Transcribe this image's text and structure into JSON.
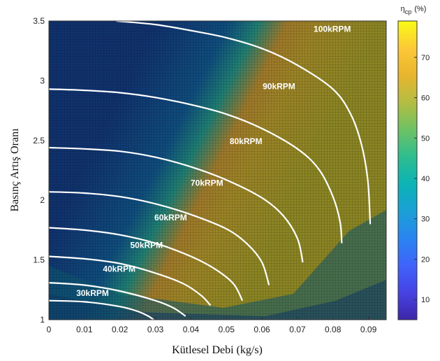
{
  "chart_data": {
    "type": "heatmap",
    "xlabel": "Kütlesel Debi (kg/s)",
    "ylabel": "Basınç Artış Oranı",
    "xlim": [
      0,
      0.095
    ],
    "ylim": [
      1,
      3.5
    ],
    "x_ticks": [
      {
        "value": 0,
        "label": "0"
      },
      {
        "value": 0.01,
        "label": "0.01"
      },
      {
        "value": 0.02,
        "label": "0.02"
      },
      {
        "value": 0.03,
        "label": "0.03"
      },
      {
        "value": 0.04,
        "label": "0.04"
      },
      {
        "value": 0.05,
        "label": "0.05"
      },
      {
        "value": 0.06,
        "label": "0.06"
      },
      {
        "value": 0.07,
        "label": "0.07"
      },
      {
        "value": 0.08,
        "label": "0.08"
      },
      {
        "value": 0.09,
        "label": "0.09"
      }
    ],
    "y_ticks": [
      {
        "value": 1,
        "label": "1"
      },
      {
        "value": 1.5,
        "label": "1.5"
      },
      {
        "value": 2,
        "label": "2"
      },
      {
        "value": 2.5,
        "label": "2.5"
      },
      {
        "value": 3,
        "label": "3"
      },
      {
        "value": 3.5,
        "label": "3.5"
      }
    ],
    "colorbar": {
      "title_symbol": "η",
      "title_subscript": "cp",
      "title_unit": "(%)",
      "range": [
        5,
        79
      ],
      "ticks": [
        10,
        20,
        30,
        40,
        50,
        60,
        70
      ],
      "colormap": [
        "#3e26a8",
        "#4643e3",
        "#3f63fb",
        "#2a85f0",
        "#1aa0d5",
        "#0bb3b5",
        "#2ebd90",
        "#6dc264",
        "#b3bd43",
        "#e8b52e",
        "#fcc937",
        "#f9fb15"
      ]
    },
    "grid": false,
    "series": [
      {
        "name": "30kRPM",
        "points": [
          [
            0,
            1.16
          ],
          [
            0.01,
            1.15
          ],
          [
            0.02,
            1.11
          ],
          [
            0.025,
            1.07
          ],
          [
            0.028,
            1.03
          ],
          [
            0.0295,
            1.0
          ]
        ]
      },
      {
        "name": "40kRPM",
        "points": [
          [
            0,
            1.31
          ],
          [
            0.01,
            1.29
          ],
          [
            0.02,
            1.24
          ],
          [
            0.03,
            1.16
          ],
          [
            0.035,
            1.1
          ],
          [
            0.0385,
            1.03
          ]
        ]
      },
      {
        "name": "50kRPM",
        "points": [
          [
            0,
            1.53
          ],
          [
            0.01,
            1.51
          ],
          [
            0.02,
            1.47
          ],
          [
            0.03,
            1.39
          ],
          [
            0.038,
            1.3
          ],
          [
            0.043,
            1.2
          ],
          [
            0.0455,
            1.12
          ]
        ]
      },
      {
        "name": "60kRPM",
        "points": [
          [
            0,
            1.77
          ],
          [
            0.01,
            1.75
          ],
          [
            0.02,
            1.71
          ],
          [
            0.03,
            1.64
          ],
          [
            0.04,
            1.53
          ],
          [
            0.047,
            1.42
          ],
          [
            0.052,
            1.3
          ],
          [
            0.0545,
            1.16
          ]
        ]
      },
      {
        "name": "70kRPM",
        "points": [
          [
            0,
            2.07
          ],
          [
            0.01,
            2.06
          ],
          [
            0.02,
            2.03
          ],
          [
            0.03,
            1.97
          ],
          [
            0.04,
            1.88
          ],
          [
            0.05,
            1.76
          ],
          [
            0.056,
            1.63
          ],
          [
            0.06,
            1.48
          ],
          [
            0.062,
            1.29
          ]
        ]
      },
      {
        "name": "80kRPM",
        "points": [
          [
            0,
            2.44
          ],
          [
            0.01,
            2.43
          ],
          [
            0.02,
            2.41
          ],
          [
            0.03,
            2.36
          ],
          [
            0.04,
            2.28
          ],
          [
            0.05,
            2.17
          ],
          [
            0.06,
            2.02
          ],
          [
            0.066,
            1.87
          ],
          [
            0.07,
            1.68
          ],
          [
            0.0715,
            1.48
          ]
        ]
      },
      {
        "name": "90kRPM",
        "points": [
          [
            0,
            2.93
          ],
          [
            0.01,
            2.92
          ],
          [
            0.02,
            2.9
          ],
          [
            0.03,
            2.86
          ],
          [
            0.04,
            2.8
          ],
          [
            0.05,
            2.72
          ],
          [
            0.06,
            2.6
          ],
          [
            0.07,
            2.43
          ],
          [
            0.076,
            2.26
          ],
          [
            0.08,
            2.03
          ],
          [
            0.082,
            1.82
          ],
          [
            0.0825,
            1.64
          ]
        ]
      },
      {
        "name": "100kRPM",
        "points": [
          [
            0.019,
            3.5
          ],
          [
            0.03,
            3.47
          ],
          [
            0.04,
            3.42
          ],
          [
            0.05,
            3.36
          ],
          [
            0.06,
            3.27
          ],
          [
            0.07,
            3.13
          ],
          [
            0.08,
            2.93
          ],
          [
            0.085,
            2.72
          ],
          [
            0.088,
            2.47
          ],
          [
            0.0898,
            2.17
          ],
          [
            0.0905,
            1.8
          ]
        ]
      }
    ],
    "series_label_positions": [
      {
        "name": "30kRPM",
        "x": 0.0123,
        "y": 1.2
      },
      {
        "name": "40kRPM",
        "x": 0.0198,
        "y": 1.4
      },
      {
        "name": "50kRPM",
        "x": 0.0275,
        "y": 1.6
      },
      {
        "name": "60kRPM",
        "x": 0.0343,
        "y": 1.83
      },
      {
        "name": "70kRPM",
        "x": 0.0445,
        "y": 2.12
      },
      {
        "name": "80kRPM",
        "x": 0.0555,
        "y": 2.47
      },
      {
        "name": "90kRPM",
        "x": 0.0648,
        "y": 2.93
      },
      {
        "name": "100kRPM",
        "x": 0.0798,
        "y": 3.41
      }
    ]
  }
}
